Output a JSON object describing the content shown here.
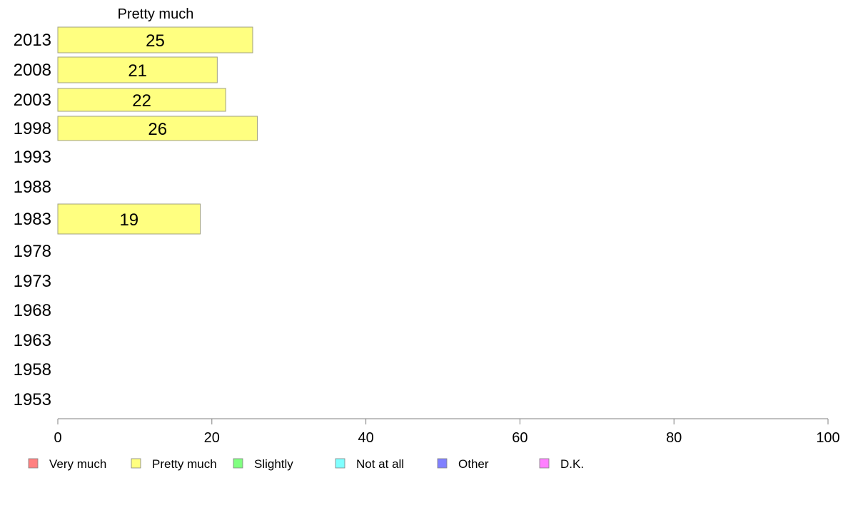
{
  "chart_data": {
    "type": "bar",
    "orientation": "horizontal",
    "title": "Pretty much",
    "categories": [
      "2013",
      "2008",
      "2003",
      "1998",
      "1993",
      "1988",
      "1983",
      "1978",
      "1973",
      "1968",
      "1963",
      "1958",
      "1953"
    ],
    "series": [
      {
        "name": "Pretty much",
        "color": "#ffff80",
        "values": [
          25.3,
          20.7,
          21.8,
          25.9,
          null,
          null,
          18.5,
          null,
          null,
          null,
          null,
          null,
          null
        ],
        "labels": [
          "25",
          "21",
          "22",
          "26",
          "",
          "",
          "19",
          "",
          "",
          "",
          "",
          "",
          ""
        ]
      }
    ],
    "xlim": [
      0,
      100
    ],
    "xticks": [
      0,
      20,
      40,
      60,
      80,
      100
    ],
    "grid": false,
    "legend": {
      "placement": "bottom",
      "entries": [
        {
          "label": "Very much",
          "color": "#ff8080"
        },
        {
          "label": "Pretty much",
          "color": "#ffff80"
        },
        {
          "label": "Slightly",
          "color": "#80ff80"
        },
        {
          "label": "Not at all",
          "color": "#80ffff"
        },
        {
          "label": "Other",
          "color": "#8080ff"
        },
        {
          "label": "D.K.",
          "color": "#ff80ff"
        }
      ]
    }
  }
}
